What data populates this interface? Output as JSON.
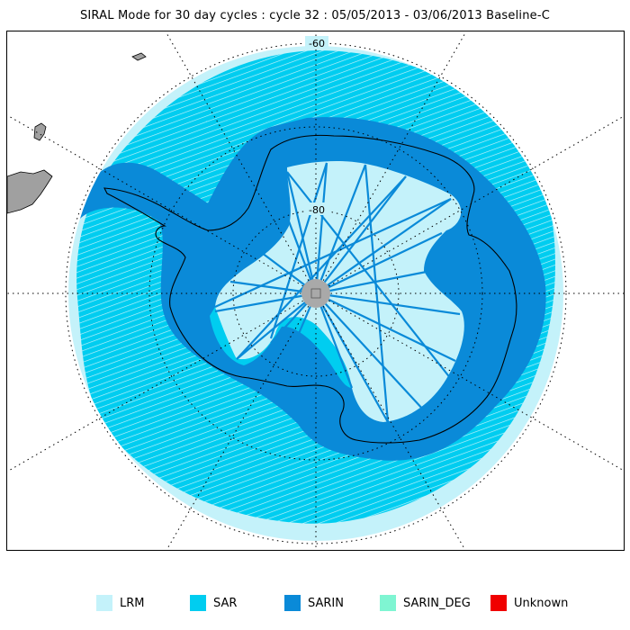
{
  "title": "SIRAL Mode for 30 day cycles : cycle 32 : 05/05/2013 - 03/06/2013 Baseline-C",
  "map": {
    "projection": "south-polar-stereographic",
    "latitude_labels": [
      "-60",
      "-80"
    ],
    "pole_hole_color": "#a9a9a9",
    "land_outside_color": "#a0a0a0",
    "coastline_color": "#000000"
  },
  "legend": [
    {
      "label": "LRM",
      "color": "#c4f2fa"
    },
    {
      "label": "SAR",
      "color": "#00cdf0"
    },
    {
      "label": "SARIN",
      "color": "#0a8ad8"
    },
    {
      "label": "SARIN_DEG",
      "color": "#7ff5d2"
    },
    {
      "label": "Unknown",
      "color": "#f00000"
    }
  ]
}
